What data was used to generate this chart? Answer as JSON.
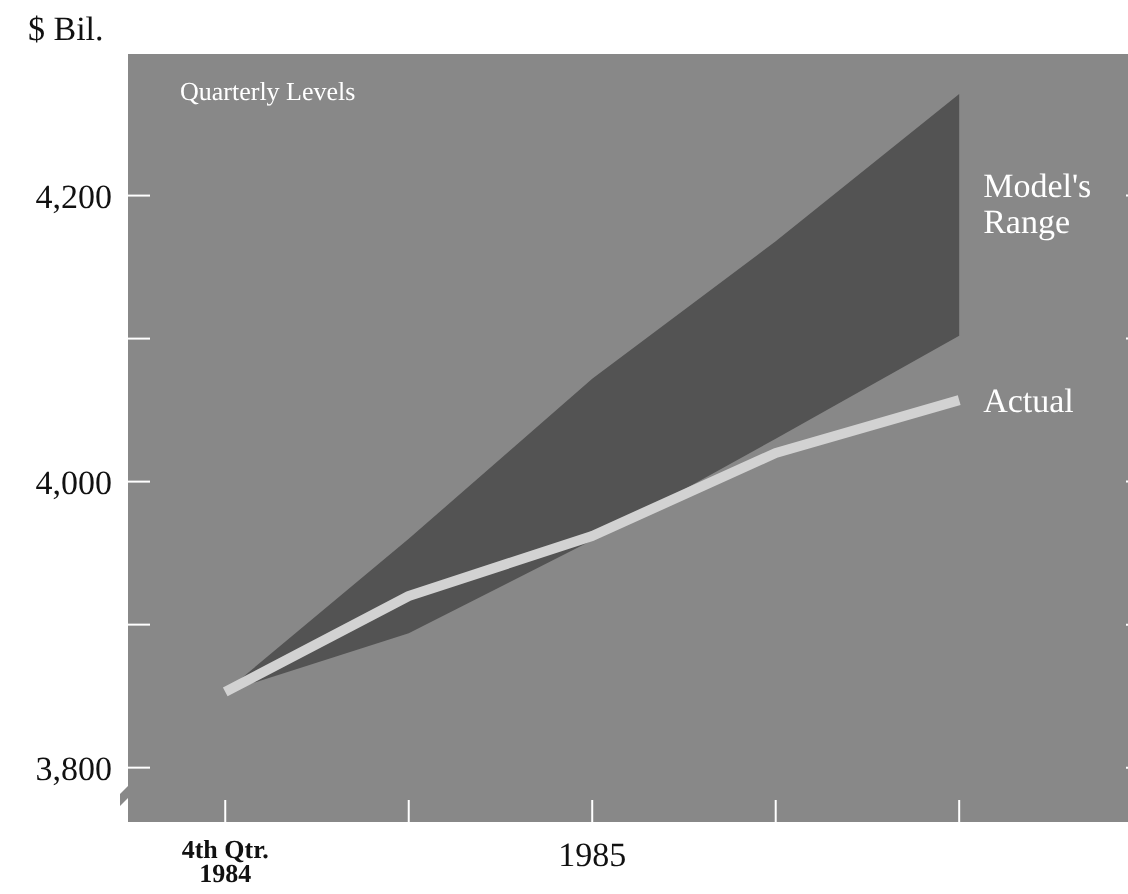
{
  "chart_data": {
    "type": "line",
    "ylabel": "$ Bil.",
    "categories": [
      "4th Qtr.\n1984",
      null,
      "1985",
      null,
      null
    ],
    "series": [
      {
        "name": "Actual",
        "color": "#d2d2d2",
        "values": [
          3853,
          3920,
          3962,
          4020,
          4057
        ],
        "lower": [
          3853,
          3894,
          3959,
          4030,
          4102
        ],
        "upper": [
          3853,
          3960,
          4072,
          4168,
          4271
        ]
      }
    ],
    "ylim": [
      3762,
      4299
    ],
    "yticks": [
      {
        "value": 3800,
        "label": "3,800"
      },
      {
        "value": 3900,
        "label": null
      },
      {
        "value": 4000,
        "label": "4,000"
      },
      {
        "value": 4100,
        "label": null
      },
      {
        "value": 4200,
        "label": "4,200"
      }
    ],
    "annotations": [
      "Quarterly Levels",
      "Model's Range"
    ],
    "marker": "none",
    "line_style": "solid"
  }
}
